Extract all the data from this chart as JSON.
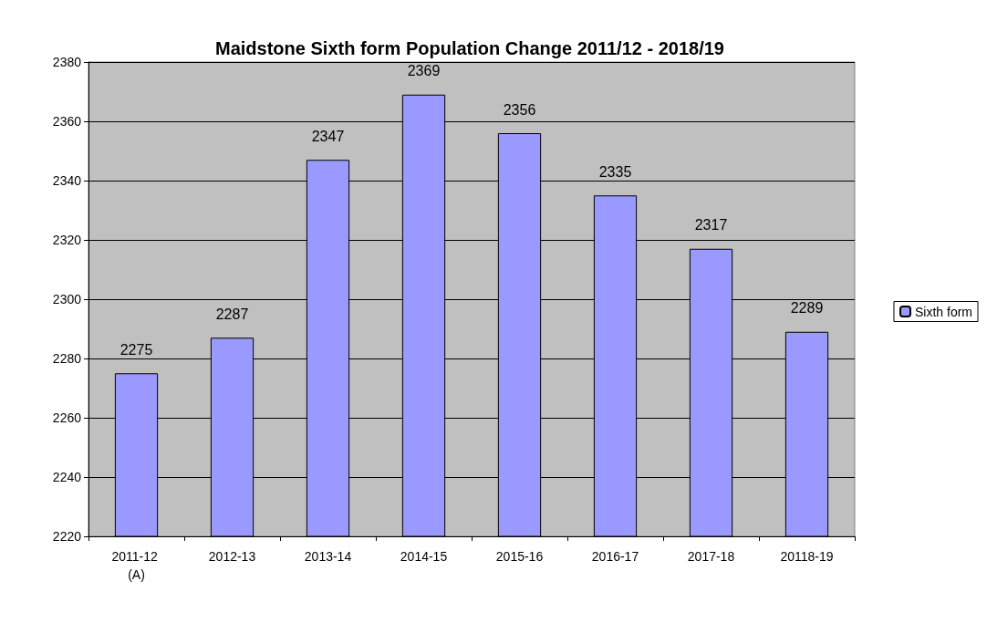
{
  "chart_data": {
    "type": "bar",
    "title": "Maidstone Sixth form Population Change 2011/12 - 2018/19",
    "categories": [
      "2011-12 (A)",
      "2012-13",
      "2013-14",
      "2014-15",
      "2015-16",
      "2016-17",
      "2017-18",
      "20118-19"
    ],
    "series": [
      {
        "name": "Sixth form",
        "color": "#9999ff",
        "values": [
          2275,
          2287,
          2347,
          2369,
          2356,
          2335,
          2317,
          2289
        ]
      }
    ],
    "ylim": [
      2220,
      2380
    ],
    "yticks": [
      2220,
      2240,
      2260,
      2280,
      2300,
      2320,
      2340,
      2360,
      2380
    ],
    "grid": "y",
    "legend": "right",
    "data_labels": true
  }
}
